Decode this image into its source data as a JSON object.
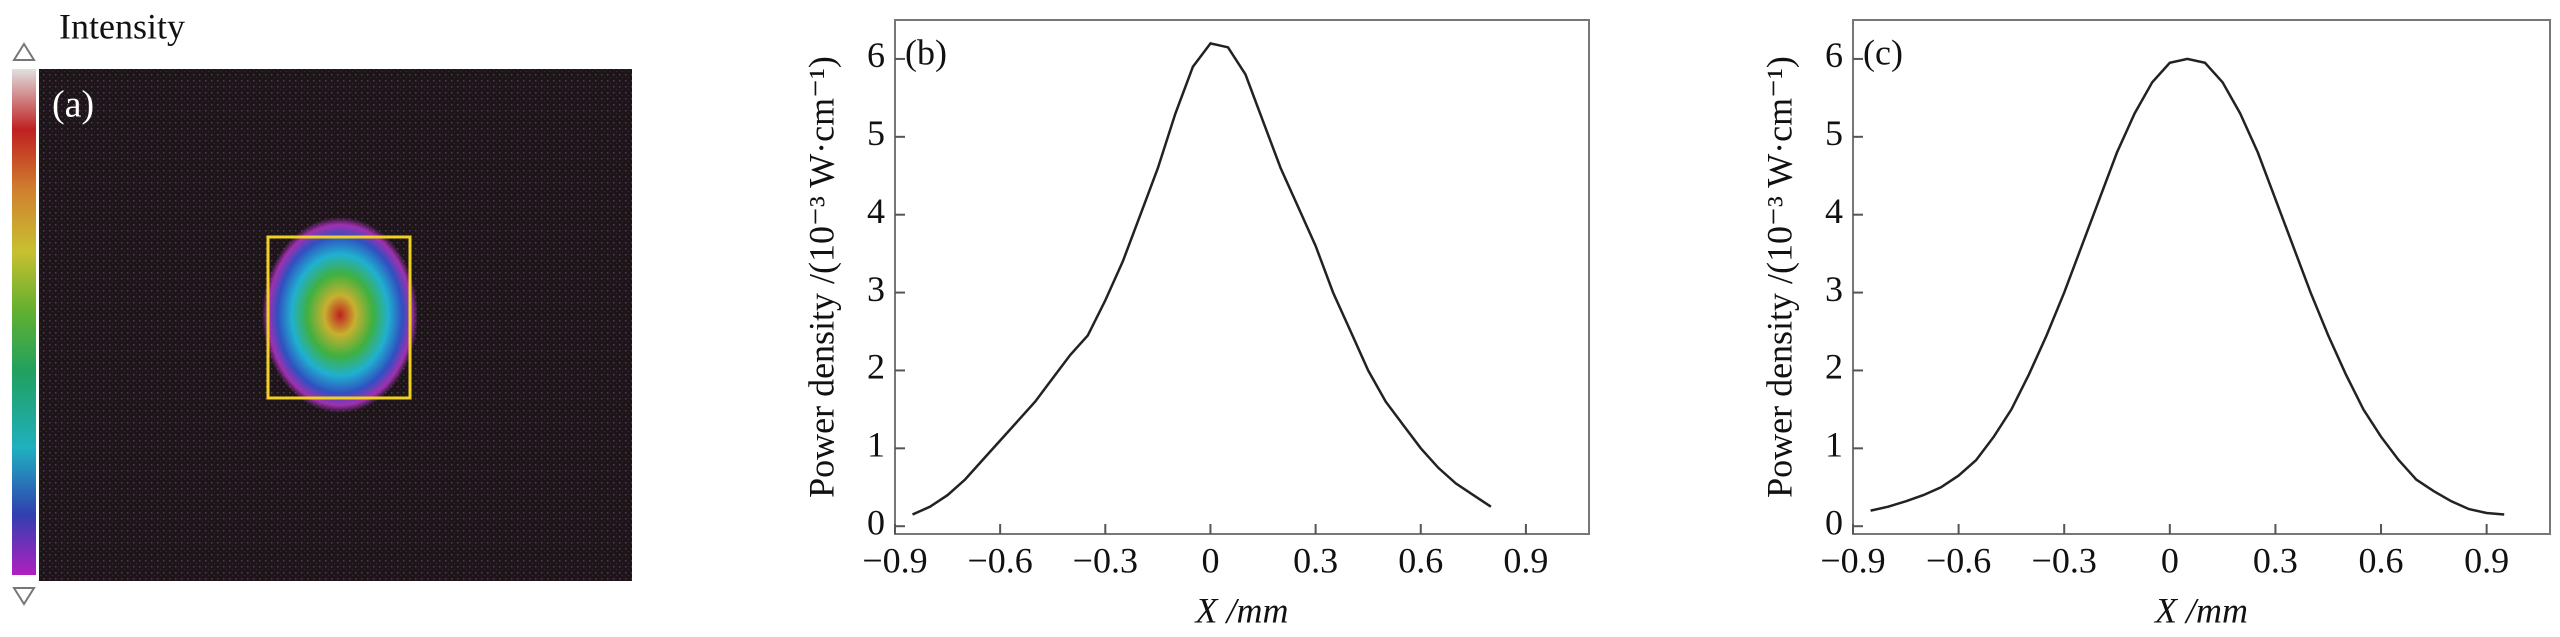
{
  "chart_data": [
    {
      "type": "image",
      "panel_label": "(a)",
      "colorbar_label": "Intensity"
    },
    {
      "type": "line",
      "panel_label": "(b)",
      "color": "#222222",
      "xlabel": "X /mm",
      "ylabel": "Power density /(10⁻³ W·cm⁻¹)",
      "x": [
        -0.85,
        -0.8,
        -0.75,
        -0.7,
        -0.65,
        -0.6,
        -0.55,
        -0.5,
        -0.45,
        -0.4,
        -0.35,
        -0.3,
        -0.25,
        -0.2,
        -0.15,
        -0.1,
        -0.05,
        0,
        0.05,
        0.1,
        0.15,
        0.2,
        0.25,
        0.3,
        0.35,
        0.4,
        0.45,
        0.5,
        0.55,
        0.6,
        0.65,
        0.7,
        0.75,
        0.8
      ],
      "values": [
        0.15,
        0.25,
        0.4,
        0.6,
        0.85,
        1.1,
        1.35,
        1.6,
        1.9,
        2.2,
        2.45,
        2.9,
        3.4,
        4.0,
        4.6,
        5.3,
        5.9,
        6.2,
        6.15,
        5.8,
        5.2,
        4.6,
        4.1,
        3.6,
        3.0,
        2.5,
        2.0,
        1.6,
        1.3,
        1.0,
        0.75,
        0.55,
        0.4,
        0.25
      ],
      "xlim": [
        -0.9,
        1.08
      ],
      "ylim": [
        -0.1,
        6.5
      ],
      "xticks": [
        {
          "value": -0.9,
          "label": "−0.9"
        },
        {
          "value": -0.6,
          "label": "−0.6"
        },
        {
          "value": -0.3,
          "label": "−0.3"
        },
        0,
        0.3,
        0.6,
        0.9
      ],
      "yticks": [
        0,
        1,
        2,
        3,
        4,
        5,
        6
      ]
    },
    {
      "type": "line",
      "panel_label": "(c)",
      "color": "#222222",
      "xlabel": "X /mm",
      "ylabel": "Power density /(10⁻³ W·cm⁻¹)",
      "x": [
        -0.85,
        -0.8,
        -0.75,
        -0.7,
        -0.65,
        -0.6,
        -0.55,
        -0.5,
        -0.45,
        -0.4,
        -0.35,
        -0.3,
        -0.25,
        -0.2,
        -0.15,
        -0.1,
        -0.05,
        0,
        0.05,
        0.1,
        0.15,
        0.2,
        0.25,
        0.3,
        0.35,
        0.4,
        0.45,
        0.5,
        0.55,
        0.6,
        0.65,
        0.7,
        0.75,
        0.8,
        0.85,
        0.9,
        0.95
      ],
      "values": [
        0.2,
        0.25,
        0.32,
        0.4,
        0.5,
        0.65,
        0.85,
        1.15,
        1.5,
        1.95,
        2.45,
        3.0,
        3.6,
        4.2,
        4.8,
        5.3,
        5.7,
        5.95,
        6.0,
        5.95,
        5.7,
        5.3,
        4.8,
        4.2,
        3.6,
        3.0,
        2.45,
        1.95,
        1.5,
        1.15,
        0.85,
        0.6,
        0.45,
        0.32,
        0.22,
        0.17,
        0.15
      ],
      "xlim": [
        -0.9,
        1.08
      ],
      "ylim": [
        -0.1,
        6.5
      ],
      "xticks": [
        {
          "value": -0.9,
          "label": "−0.9"
        },
        {
          "value": -0.6,
          "label": "−0.6"
        },
        {
          "value": -0.3,
          "label": "−0.3"
        },
        0,
        0.3,
        0.6,
        0.9
      ],
      "yticks": [
        0,
        1,
        2,
        3,
        4,
        5,
        6
      ]
    }
  ]
}
